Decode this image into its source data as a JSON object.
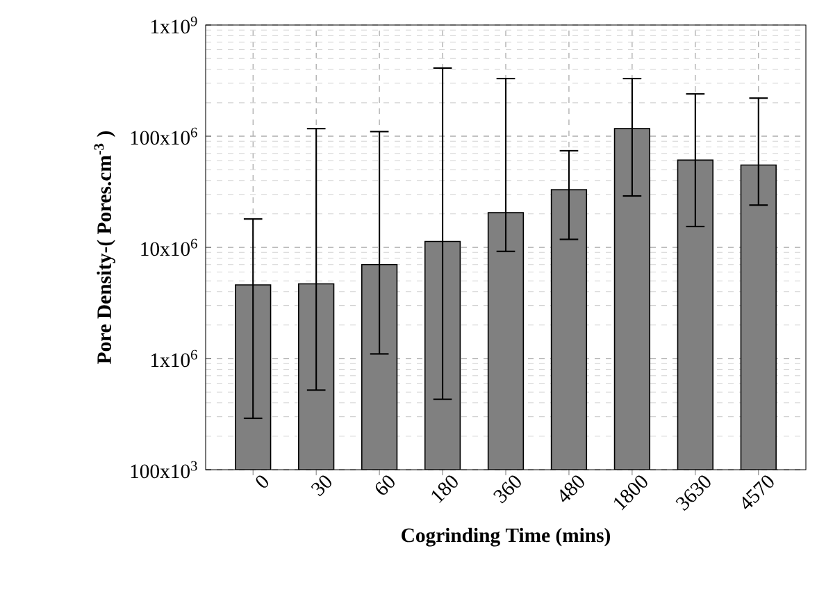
{
  "chart_data": {
    "type": "bar",
    "xlabel": "Cogrinding Time (mins)",
    "ylabel": "Pore Density-( Pores.cm$^{-3}$ )",
    "categories": [
      "0",
      "30",
      "60",
      "180",
      "360",
      "480",
      "1800",
      "3630",
      "4570"
    ],
    "values": [
      4600000,
      4700000,
      7000000,
      11300000,
      20500000,
      33000000,
      117000000,
      61000000,
      55000000
    ],
    "errors": [
      [
        290000,
        18000000
      ],
      [
        520000,
        117000000
      ],
      [
        1100000,
        110000000
      ],
      [
        430000,
        410000000
      ],
      [
        9200000,
        330000000
      ],
      [
        11800000,
        74000000
      ],
      [
        29000000,
        330000000
      ],
      [
        15400000,
        240000000
      ],
      [
        24000000,
        220000000
      ]
    ],
    "color": "#808080",
    "log": "y",
    "ylim": [
      100000,
      1000000000
    ],
    "yticks": [
      {
        "value": 100000,
        "label": "100x10$^{3}$"
      },
      {
        "value": 1000000,
        "label": "1x10$^{6}$"
      },
      {
        "value": 10000000,
        "label": "10x10$^{6}$"
      },
      {
        "value": 100000000,
        "label": "100x10$^{6}$"
      },
      {
        "value": 1000000000,
        "label": "1x10$^{9}$"
      }
    ],
    "grid": true
  }
}
